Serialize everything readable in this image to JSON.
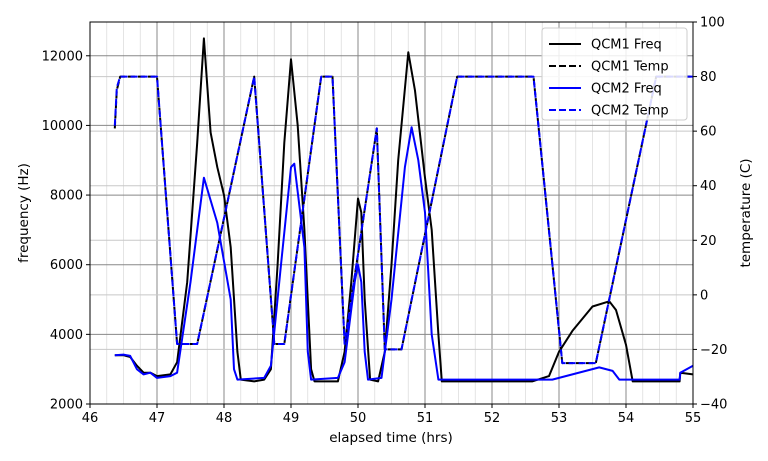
{
  "chart_data": {
    "type": "line",
    "title": "",
    "xlabel": "elapsed time (hrs)",
    "ylabel": "frequency (Hz)",
    "ylabel_right": "temperature (C)",
    "xlim": [
      46,
      55
    ],
    "ylim": [
      2000,
      12970
    ],
    "ylim_right": [
      -40,
      100
    ],
    "xticks": [
      "46",
      "47",
      "48",
      "49",
      "50",
      "51",
      "52",
      "53",
      "54",
      "55"
    ],
    "yticks": [
      "2000",
      "4000",
      "6000",
      "8000",
      "10000",
      "12000"
    ],
    "yticks_right": [
      "−40",
      "−20",
      "0",
      "20",
      "40",
      "60",
      "80",
      "100"
    ],
    "grid": true,
    "legend_position": "top-right",
    "series": [
      {
        "name": "QCM1 Freq",
        "axis": "left",
        "style": "solid",
        "color": "#000000",
        "x": [
          46.37,
          46.5,
          46.6,
          46.7,
          46.8,
          46.9,
          47.0,
          47.2,
          47.3,
          47.45,
          47.6,
          47.7,
          47.8,
          47.9,
          48.0,
          48.1,
          48.2,
          48.25,
          48.45,
          48.6,
          48.7,
          48.8,
          48.9,
          49.0,
          49.1,
          49.2,
          49.3,
          49.35,
          49.7,
          49.8,
          49.9,
          50.0,
          50.05,
          50.1,
          50.18,
          50.3,
          50.4,
          50.5,
          50.6,
          50.75,
          50.85,
          51.0,
          51.1,
          51.2,
          51.25,
          52.6,
          52.85,
          53.0,
          53.2,
          53.5,
          53.75,
          53.85,
          54.0,
          54.1,
          54.8,
          54.81,
          55.0
        ],
        "y": [
          3400,
          3400,
          3350,
          3100,
          2900,
          2900,
          2800,
          2850,
          3200,
          5500,
          9500,
          12500,
          9800,
          8800,
          8000,
          6500,
          3500,
          2700,
          2650,
          2700,
          3000,
          6000,
          9500,
          11900,
          10000,
          7000,
          3000,
          2650,
          2650,
          3500,
          5500,
          7900,
          7500,
          5000,
          2700,
          2650,
          3500,
          6000,
          9000,
          12100,
          11000,
          8500,
          7000,
          4000,
          2650,
          2650,
          2800,
          3500,
          4100,
          4800,
          4950,
          4700,
          3700,
          2650,
          2650,
          2900,
          2850
        ]
      },
      {
        "name": "QCM1 Temp",
        "axis": "right",
        "style": "dashed",
        "color": "#000000",
        "x": [
          46.37,
          46.4,
          46.45,
          47.0,
          47.3,
          47.6,
          48.45,
          48.75,
          48.9,
          49.45,
          49.62,
          49.8,
          50.28,
          50.4,
          50.65,
          51.48,
          52.62,
          53.05,
          53.55,
          54.45,
          55.0
        ],
        "y": [
          61,
          75,
          80,
          80,
          -18,
          -18,
          80,
          -18,
          -18,
          80,
          80,
          -18,
          61,
          -20,
          -20,
          80,
          80,
          -25,
          -25,
          80,
          80
        ]
      },
      {
        "name": "QCM2 Freq",
        "axis": "left",
        "style": "solid",
        "color": "#0000ff",
        "x": [
          46.37,
          46.5,
          46.6,
          46.7,
          46.8,
          46.9,
          47.0,
          47.2,
          47.3,
          47.5,
          47.7,
          47.9,
          48.1,
          48.15,
          48.2,
          48.6,
          48.7,
          48.85,
          49.0,
          49.05,
          49.2,
          49.25,
          49.3,
          49.7,
          49.8,
          49.95,
          50.0,
          50.05,
          50.1,
          50.15,
          50.35,
          50.5,
          50.7,
          50.8,
          50.9,
          51.0,
          51.1,
          51.2,
          52.9,
          53.2,
          53.6,
          53.8,
          53.9,
          54.8,
          54.81,
          55.0
        ],
        "y": [
          3400,
          3420,
          3380,
          3000,
          2850,
          2900,
          2750,
          2800,
          2900,
          5500,
          8500,
          7200,
          5000,
          3000,
          2700,
          2750,
          3100,
          6000,
          8800,
          8900,
          6500,
          3500,
          2700,
          2750,
          3200,
          5500,
          6000,
          5500,
          3500,
          2700,
          2750,
          5000,
          8800,
          9950,
          9000,
          7500,
          4000,
          2700,
          2700,
          2850,
          3050,
          2950,
          2700,
          2700,
          2900,
          3100
        ]
      },
      {
        "name": "QCM2 Temp",
        "axis": "right",
        "style": "dashed",
        "color": "#0000ff",
        "x": [
          46.37,
          46.4,
          46.45,
          47.0,
          47.3,
          47.6,
          48.45,
          48.75,
          48.9,
          49.45,
          49.62,
          49.8,
          50.28,
          50.4,
          50.65,
          51.48,
          52.62,
          53.05,
          53.55,
          54.45,
          55.0
        ],
        "y": [
          62,
          76,
          80,
          80,
          -18,
          -18,
          80,
          -18,
          -18,
          80,
          80,
          -18,
          61,
          -20,
          -20,
          80,
          80,
          -25,
          -25,
          80,
          80
        ]
      }
    ]
  }
}
